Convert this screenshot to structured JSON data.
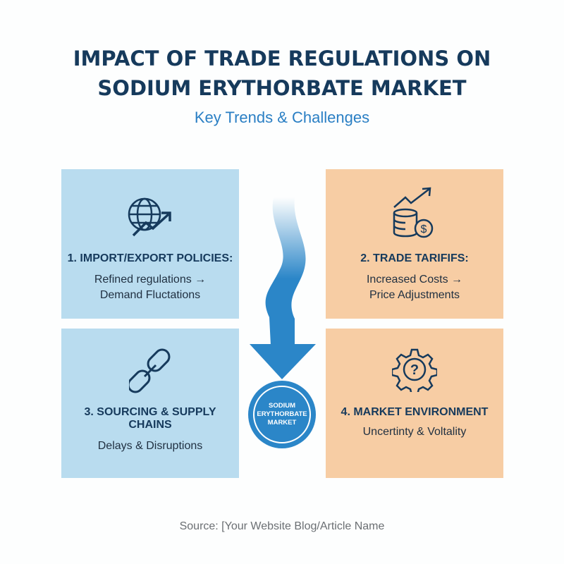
{
  "header": {
    "title_line1": "IMPACT OF TRADE REGULATIONS ON",
    "title_line2": "SODIUM ERYTHORBATE MARKET",
    "subtitle": "Key Trends & Challenges"
  },
  "panels": [
    {
      "heading": "1. IMPORT/EXPORT POLICIES:",
      "line1": "Refined regulations →",
      "line2": "Demand Fluctations",
      "icon": "globe-trend-icon",
      "color": "#b9dcef"
    },
    {
      "heading": "2. TRADE TARIFIFS:",
      "line1": "Increased Costs →",
      "line2": "Price Adjustments",
      "icon": "coins-dollar-trend-icon",
      "color": "#f7cda4"
    },
    {
      "heading": "3. SOURCING & SUPPLY CHAINS",
      "line1": "Delays & Disruptions",
      "icon": "chain-link-icon",
      "color": "#b9dcef"
    },
    {
      "heading": "4. MARKET ENVIRONMENT",
      "line1": "Uncertinty & Voltality",
      "icon": "gear-question-icon",
      "color": "#f7cda4"
    }
  ],
  "center": {
    "line1": "SODIUM",
    "line2": "ERYTHORBATE",
    "line3": "MARKET",
    "color": "#2b86c8"
  },
  "footer": {
    "source": "Source: [Your Website Blog/Article Name"
  }
}
